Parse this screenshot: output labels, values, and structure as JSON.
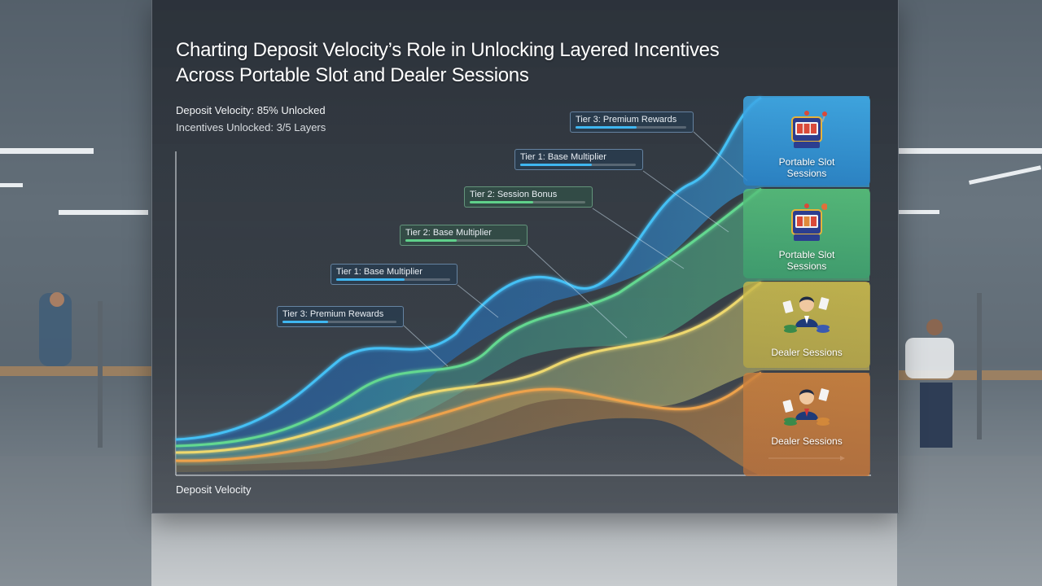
{
  "title_lines": [
    "Charting Deposit Velocity’s Role in Unlocking Layered Incentives",
    "Across Portable Slot and Dealer Sessions"
  ],
  "stats": {
    "deposit_velocity": "Deposit Velocity: 85% Unlocked",
    "incentives": "Incentives Unlocked: 3/5 Layers"
  },
  "chart_data": {
    "type": "area",
    "xlabel": "Deposit Velocity",
    "ylabel": "",
    "deposit_velocity_unlocked_pct": 85,
    "incentive_layers_unlocked": 3,
    "incentive_layers_total": 5,
    "series": [
      {
        "name": "Portable Slot Sessions",
        "color": "#3fb6f0"
      },
      {
        "name": "Portable Slot Sessions",
        "color": "#5fd08a"
      },
      {
        "name": "Dealer Sessions",
        "color": "#e8d36a"
      },
      {
        "name": "Dealer Sessions",
        "color": "#e3913f"
      }
    ],
    "tier_labels": [
      {
        "label": "Tier 3: Premium Rewards",
        "progress": 0.55,
        "color": "#3fb6f0"
      },
      {
        "label": "Tier 1: Base Multiplier",
        "progress": 0.62,
        "color": "#3fb6f0"
      },
      {
        "label": "Tier 2: Base Multiplier",
        "progress": 0.45,
        "color": "#5fd08a"
      },
      {
        "label": "Tier 2: Session Bonus",
        "progress": 0.55,
        "color": "#5fd08a"
      },
      {
        "label": "Tier 1: Base Multiplier",
        "progress": 0.6,
        "color": "#3fb6f0"
      },
      {
        "label": "Tier 3: Premium Rewards",
        "progress": 0.4,
        "color": "#3fb6f0"
      }
    ]
  },
  "tiles": [
    {
      "label_1": "Portable Slot",
      "label_2": "Sessions",
      "icon": "slot-machine-icon",
      "color": "#3fa9e6"
    },
    {
      "label_1": "Portable Slot",
      "label_2": "Sessions",
      "icon": "slot-machine-icon",
      "color": "#56c07a"
    },
    {
      "label_1": "Dealer Sessions",
      "label_2": "",
      "icon": "dealer-icon",
      "color": "#c7b84a"
    },
    {
      "label_1": "Dealer Sessions",
      "label_2": "",
      "icon": "dealer-icon",
      "color": "#c9803e"
    }
  ]
}
